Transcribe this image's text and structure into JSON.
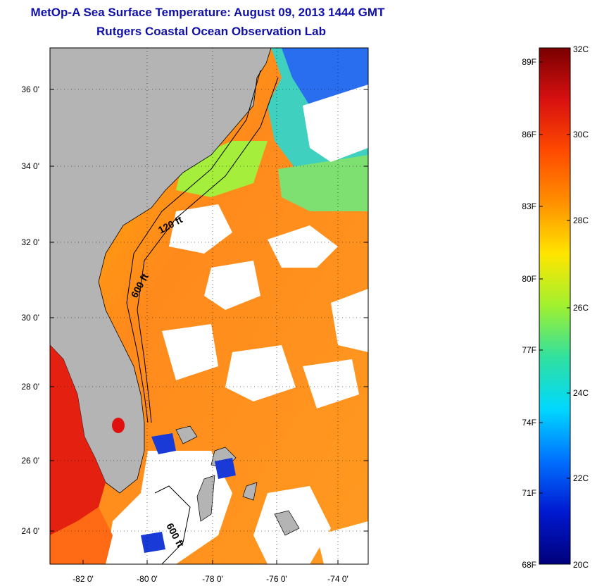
{
  "header": {
    "title": "MetOp-A Sea Surface Temperature:  August 09, 2013 1444 GMT",
    "subtitle": "Rutgers Coastal Ocean Observation Lab"
  },
  "map": {
    "lat_labels": [
      "36 0'",
      "34 0'",
      "32 0'",
      "30 0'",
      "28 0'",
      "26 0'",
      "24 0'"
    ],
    "lon_labels": [
      "-82 0'",
      "-80 0'",
      "-78 0'",
      "-76 0'",
      "-74 0'"
    ],
    "contours": {
      "c120": "120 ft",
      "c600a": "600 ft",
      "c600b": "600 ft"
    },
    "colors": {
      "land": "#b4b4b4",
      "ocean_warm": "#ff8c1a",
      "cloud": "#ffffff"
    }
  },
  "colorbar": {
    "f_labels": [
      "89F",
      "86F",
      "83F",
      "80F",
      "77F",
      "74F",
      "71F",
      "68F"
    ],
    "c_labels": [
      "32C",
      "30C",
      "28C",
      "26C",
      "24C",
      "22C",
      "20C"
    ],
    "colors": [
      "#7a0000",
      "#d81010",
      "#ff5a00",
      "#ffa000",
      "#ffe600",
      "#b0f030",
      "#40e0a0",
      "#00e0ff",
      "#0080ff",
      "#0020e0",
      "#00007a"
    ]
  }
}
